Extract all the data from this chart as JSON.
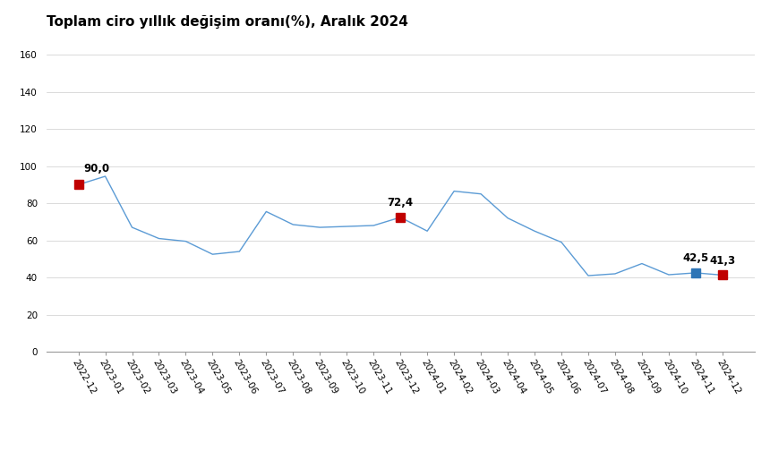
{
  "title": "Toplam ciro yıllık değişim oranı(%), Aralık 2024",
  "x_labels": [
    "2022-12",
    "2023-01",
    "2023-02",
    "2023-03",
    "2023-04",
    "2023-05",
    "2023-06",
    "2023-07",
    "2023-08",
    "2023-09",
    "2023-10",
    "2023-11",
    "2023-12",
    "2024-01",
    "2024-02",
    "2024-03",
    "2024-04",
    "2024-05",
    "2024-06",
    "2024-07",
    "2024-08",
    "2024-09",
    "2024-10",
    "2024-11",
    "2024-12"
  ],
  "values": [
    90.0,
    94.5,
    67.0,
    61.0,
    59.5,
    52.5,
    54.0,
    75.5,
    68.5,
    67.0,
    67.5,
    68.0,
    72.4,
    65.0,
    86.5,
    85.0,
    72.0,
    65.0,
    59.0,
    41.0,
    42.0,
    47.5,
    41.5,
    42.5,
    41.3
  ],
  "line_color": "#5b9bd5",
  "marker_red_color": "#c00000",
  "marker_blue_color": "#2e75b6",
  "annotated_points": {
    "2022-12": {
      "value": 90.0,
      "label": "90,0",
      "color": "#c00000"
    },
    "2023-12": {
      "value": 72.4,
      "label": "72,4",
      "color": "#c00000"
    },
    "2024-11": {
      "value": 42.5,
      "label": "42,5",
      "color": "#2e75b6"
    },
    "2024-12": {
      "value": 41.3,
      "label": "41,3",
      "color": "#c00000"
    }
  },
  "ylim": [
    0,
    170
  ],
  "yticks": [
    0,
    20,
    40,
    60,
    80,
    100,
    120,
    140,
    160
  ],
  "background_color": "#ffffff",
  "title_fontsize": 11,
  "tick_fontsize": 7.5
}
